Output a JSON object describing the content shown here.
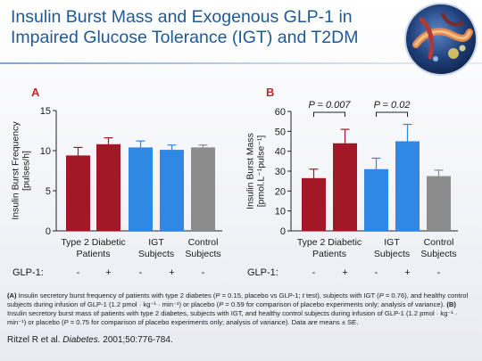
{
  "title": {
    "line1": "Insulin Burst Mass and Exogenous GLP-1 in",
    "line2": "Impaired Glucose Tolerance (IGT) and T2DM"
  },
  "chart_data": [
    {
      "type": "bar",
      "panel_label": "A",
      "ylabel": [
        "Insulin Burst Frequency",
        "[pulses/h]"
      ],
      "ylim": [
        0,
        15
      ],
      "yticks": [
        0,
        5,
        10,
        15
      ],
      "glp1_row_label": "GLP-1:",
      "groups": [
        {
          "label": [
            "Type 2 Diabetic",
            "Patients"
          ]
        },
        {
          "label": [
            "IGT",
            "Subjects"
          ]
        },
        {
          "label": [
            "Control",
            "Subjects"
          ]
        }
      ],
      "bars": [
        {
          "value": 9.4,
          "error": 1.0,
          "glp1": "-",
          "color": "#a21826"
        },
        {
          "value": 10.8,
          "error": 0.8,
          "glp1": "+",
          "color": "#a21826"
        },
        {
          "value": 10.4,
          "error": 0.8,
          "glp1": "-",
          "color": "#2f88e4"
        },
        {
          "value": 10.1,
          "error": 0.6,
          "glp1": "+",
          "color": "#2f88e4"
        },
        {
          "value": 10.4,
          "error": 0.3,
          "glp1": "-",
          "color": "#8c8c8c"
        }
      ],
      "annotations": []
    },
    {
      "type": "bar",
      "panel_label": "B",
      "ylabel": [
        "Insulin Burst Mass",
        "[pmol.L⁻¹pulse⁻¹]"
      ],
      "ylim": [
        0,
        60
      ],
      "yticks": [
        0,
        10,
        20,
        30,
        40,
        50,
        60
      ],
      "glp1_row_label": "GLP-1:",
      "groups": [
        {
          "label": [
            "Type 2 Diabetic",
            "Patients"
          ]
        },
        {
          "label": [
            "IGT",
            "Subjects"
          ]
        },
        {
          "label": [
            "Control",
            "Subjects"
          ]
        }
      ],
      "bars": [
        {
          "value": 26.5,
          "error": 4.5,
          "glp1": "-",
          "color": "#a21826"
        },
        {
          "value": 44,
          "error": 7,
          "glp1": "+",
          "color": "#a21826"
        },
        {
          "value": 31,
          "error": 5.5,
          "glp1": "-",
          "color": "#2f88e4"
        },
        {
          "value": 45,
          "error": 8.5,
          "glp1": "+",
          "color": "#2f88e4"
        },
        {
          "value": 27.5,
          "error": 3,
          "glp1": "-",
          "color": "#8c8c8c"
        }
      ],
      "annotations": [
        {
          "text": "P = 0.007",
          "from_bar": 0,
          "to_bar": 1
        },
        {
          "text": "P = 0.02",
          "from_bar": 2,
          "to_bar": 3
        }
      ]
    }
  ],
  "caption": {
    "a_label": "(A)",
    "a_text_1": " Insulin secretory burst frequency of patients with type 2 diabetes (",
    "a_p1_letter": "P",
    "a_text_2": " = 0.15, placebo vs GLP-1; ",
    "a_t_letter": "t",
    "a_text_3": " test), subjects with IGT (",
    "a_p2_letter": "P",
    "a_text_4": " = 0.76), and healthy control subjects during infusion of GLP-1 (1.2 pmol · kg⁻¹ · min⁻¹) or placebo (",
    "a_p3_letter": "P",
    "a_text_5": " = 0.59 for comparison of placebo experiments only; analysis of variance). ",
    "b_label": "(B)",
    "b_text_1": " Insulin secretory burst mass of patients with type 2 diabetes, subjects with IGT, and healthy control subjects during infusion of GLP-1 (1.2 pmol · kg⁻¹ · min⁻¹) or placebo (",
    "b_p_letter": "P",
    "b_text_2": " = 0.75 for comparison of placebo experiments only; analysis of variance). Data are means ± SE."
  },
  "citation": {
    "authors": "Ritzel R et al. ",
    "journal": "Diabetes.",
    "details": " 2001;50:776-784."
  }
}
